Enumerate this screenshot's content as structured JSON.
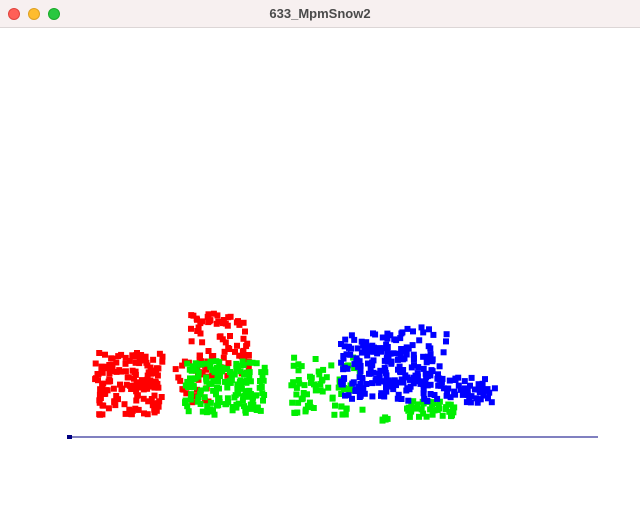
{
  "window": {
    "title": "633_MpmSnow2",
    "buttons": [
      "close",
      "minimize",
      "maximize"
    ]
  },
  "scene": {
    "background": "#ffffff",
    "ground_color": "#000080",
    "groups": [
      {
        "name": "red",
        "color": "#ff0000"
      },
      {
        "name": "green",
        "color": "#00ee00"
      },
      {
        "name": "blue",
        "color": "#0000ff"
      }
    ]
  }
}
